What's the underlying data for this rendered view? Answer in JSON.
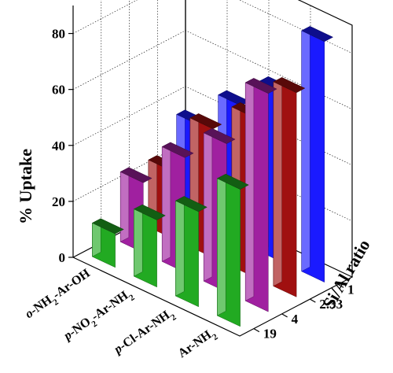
{
  "chart_data": {
    "type": "bar",
    "style": "3d-bar",
    "title": "",
    "zlabel": "% Uptake",
    "ylabel": "Si/Al ratio",
    "xlabel": "",
    "zlim": [
      0,
      90
    ],
    "z_ticks": [
      "0",
      "20",
      "40",
      "60",
      "80"
    ],
    "categories": [
      "o-NH2-Ar-OH",
      "p-NO2-Ar-NH2",
      "p-Cl-Ar-NH2",
      "Ar-NH2"
    ],
    "category_labels": [
      {
        "prefix": "o",
        "parts": [
          "-NH",
          "2",
          "-Ar-OH"
        ]
      },
      {
        "prefix": "p",
        "parts": [
          "-NO",
          "2",
          "-Ar-NH",
          "2"
        ]
      },
      {
        "prefix": "p",
        "parts": [
          "-Cl-Ar-NH",
          "2"
        ]
      },
      {
        "prefix": "",
        "parts": [
          "Ar-NH",
          "2"
        ]
      }
    ],
    "si_al_ratios": [
      "19",
      "4",
      "2.33",
      "1"
    ],
    "series": [
      {
        "values": [
          12,
          24,
          34,
          49
        ],
        "color": "#22aa22"
      },
      {
        "values": [
          25,
          41,
          53,
          78
        ],
        "color": "#a020a0"
      },
      {
        "values": [
          24,
          46,
          57,
          73
        ],
        "color": "#a01010"
      },
      {
        "values": [
          35,
          49,
          61,
          86
        ],
        "color": "#1a1aff"
      }
    ],
    "grid": true
  }
}
